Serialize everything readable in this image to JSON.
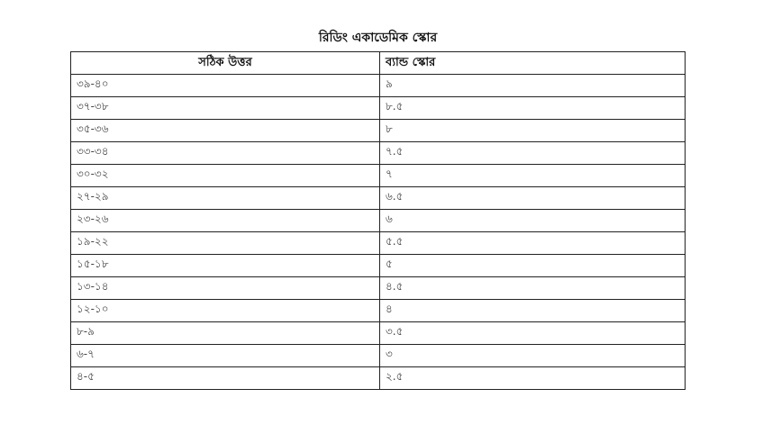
{
  "title": "রিডিং একাডেমিক স্কোর",
  "headers": [
    "সঠিক উত্তর",
    "ব্যান্ড স্কোর"
  ],
  "rows": [
    [
      "৩৯-৪০",
      "৯"
    ],
    [
      "৩৭-৩৮",
      "৮.৫"
    ],
    [
      "৩৫-৩৬",
      "৮"
    ],
    [
      "৩৩-৩৪",
      "৭.৫"
    ],
    [
      "৩০-৩২",
      "৭"
    ],
    [
      "২৭-২৯",
      "৬.৫"
    ],
    [
      "২৩-২৬",
      "৬"
    ],
    [
      "১৯-২২",
      "৫.৫"
    ],
    [
      "১৫-১৮",
      "৫"
    ],
    [
      "১৩-১৪",
      "৪.৫"
    ],
    [
      "১২-১০",
      "৪"
    ],
    [
      "৮-৯",
      "৩.৫"
    ],
    [
      "৬-৭",
      "৩"
    ],
    [
      "৪-৫",
      "২.৫"
    ]
  ]
}
